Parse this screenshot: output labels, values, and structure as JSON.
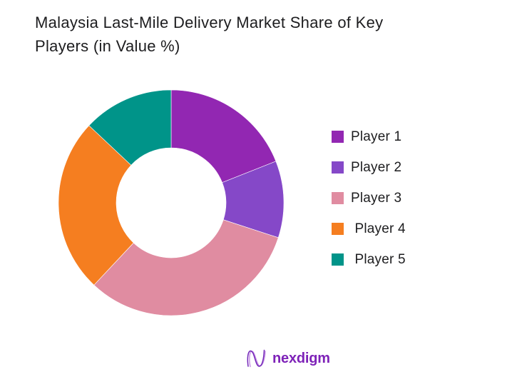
{
  "header": {
    "title_line1": "Malaysia Last-Mile Delivery Market Share of Key",
    "title_line2": "Players (in Value %)",
    "text_color": "#1d1d1f"
  },
  "chart_data": {
    "type": "pie",
    "variant": "donut",
    "title": "Malaysia Last-Mile Delivery Market Share of Key Players (in Value %)",
    "categories": [
      "Player 1",
      "Player 2",
      "Player 3",
      "Player 4",
      "Player 5"
    ],
    "values": [
      19,
      11,
      32,
      25,
      13
    ],
    "unit": "percent of market value",
    "colors": [
      "#9227B2",
      "#8548C8",
      "#E08CA1",
      "#F57E20",
      "#009489"
    ],
    "start_angle_deg": 0,
    "direction": "clockwise",
    "inner_radius_ratio": 0.49,
    "legend_position": "right",
    "data_labels_shown": false
  },
  "legend": {
    "items": [
      {
        "label": "Player 1",
        "color": "#9227B2"
      },
      {
        "label": "Player 2",
        "color": "#8548C8"
      },
      {
        "label": "Player 3",
        "color": "#E08CA1"
      },
      {
        "label": " Player 4",
        "color": "#F57E20"
      },
      {
        "label": " Player 5",
        "color": "#009489"
      }
    ]
  },
  "footer": {
    "logo_text": "nexdigm",
    "logo_color": "#7E22B8",
    "logo_mark_colors": [
      "#9C3FD0",
      "#7227B8"
    ]
  }
}
